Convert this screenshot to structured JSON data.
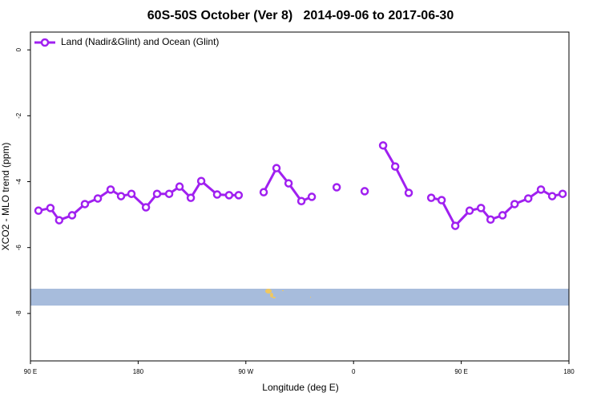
{
  "chart_data": {
    "type": "line",
    "title": "60S-50S October (Ver 8)   2014-09-06 to 2017-06-30",
    "x_label": "Longitude (deg E)",
    "y_label": "XCO2 - MLO trend (ppm)",
    "xlim": [
      90,
      540
    ],
    "ylim": [
      -9.44,
      0.54
    ],
    "xticks": [
      {
        "value": 90,
        "label": "90 E"
      },
      {
        "value": 180,
        "label": "180"
      },
      {
        "value": 270,
        "label": "90 W"
      },
      {
        "value": 360,
        "label": "0"
      },
      {
        "value": 450,
        "label": "90 E"
      },
      {
        "value": 540,
        "label": "180"
      }
    ],
    "yticks": [
      0,
      -2,
      -4,
      -6,
      -8
    ],
    "legend": "top-left",
    "x": [
      96.7,
      106.7,
      114,
      124.8,
      135.5,
      146.3,
      157,
      165.7,
      174.4,
      186.5,
      195.8,
      205.9,
      214.6,
      224,
      232.7,
      246,
      256,
      264,
      274.5,
      284.9,
      295.6,
      305.7,
      316.4,
      325.1,
      335.5,
      345.9,
      357,
      369.3,
      377,
      384.7,
      394.8,
      406.1,
      415.5,
      424.9,
      433.6,
      445,
      457,
      466.5,
      474.5,
      484.5,
      494.6,
      506,
      516.6,
      526,
      534.7
    ],
    "series": [
      {
        "name": "Land (Nadir&Glint) and Ocean (Glint)",
        "color": "#a020f0",
        "values": [
          -4.88,
          -4.8,
          -5.17,
          -5.02,
          -4.68,
          -4.51,
          -4.24,
          -4.44,
          -4.37,
          -4.78,
          -4.37,
          -4.37,
          -4.15,
          -4.49,
          -3.98,
          -4.39,
          -4.41,
          -4.41,
          null,
          -4.32,
          -3.59,
          -4.05,
          -4.59,
          -4.46,
          null,
          -4.17,
          null,
          -4.29,
          null,
          -2.9,
          -3.54,
          -4.34,
          null,
          -4.49,
          -4.56,
          -5.34,
          -4.88,
          -4.8,
          -5.15,
          -5.02,
          -4.68,
          -4.51,
          -4.24,
          -4.44,
          -4.37
        ]
      }
    ]
  }
}
